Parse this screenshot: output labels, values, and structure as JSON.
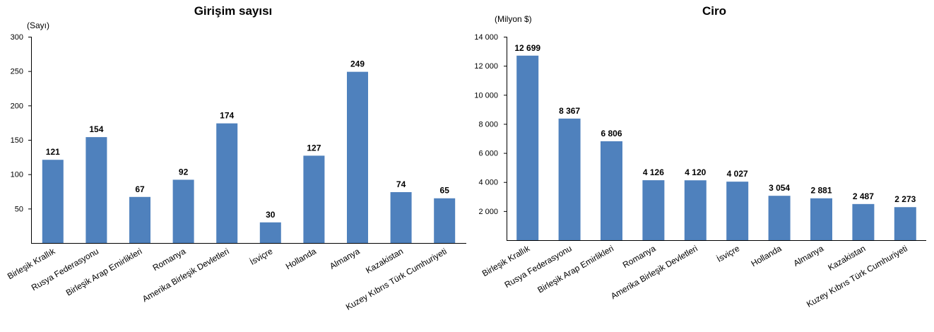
{
  "chart_data": [
    {
      "type": "bar",
      "title": "Girişim sayısı",
      "ylabel": "(Sayı)",
      "xlabel": "",
      "ylim": [
        0,
        300
      ],
      "yticks": [
        50,
        100,
        150,
        200,
        250,
        300
      ],
      "ytick_labels": [
        "50",
        "100",
        "150",
        "200",
        "250",
        "300"
      ],
      "grid": false,
      "color": "#4f81bd",
      "categories": [
        "Birleşik Krallık",
        "Rusya Federasyonu",
        "Birleşik Arap Emirlikleri",
        "Romanya",
        "Amerika Birleşik Devletleri",
        "İsviçre",
        "Hollanda",
        "Almanya",
        "Kazakistan",
        "Kuzey Kıbrıs Türk Cumhuriyeti"
      ],
      "values": [
        121,
        154,
        67,
        92,
        174,
        30,
        127,
        249,
        74,
        65
      ],
      "value_labels": [
        "121",
        "154",
        "67",
        "92",
        "174",
        "30",
        "127",
        "249",
        "74",
        "65"
      ]
    },
    {
      "type": "bar",
      "title": "Ciro",
      "ylabel": "(Milyon $)",
      "xlabel": "",
      "ylim": [
        0,
        14000
      ],
      "yticks": [
        2000,
        4000,
        6000,
        8000,
        10000,
        12000,
        14000
      ],
      "ytick_labels": [
        "2 000",
        "4 000",
        "6 000",
        "8 000",
        "10 000",
        "12 000",
        "14 000"
      ],
      "grid": false,
      "color": "#4f81bd",
      "categories": [
        "Birleşik Krallık",
        "Rusya Federasyonu",
        "Birleşik Arap Emirlikleri",
        "Romanya",
        "Amerika Birleşik Devletleri",
        "İsviçre",
        "Hollanda",
        "Almanya",
        "Kazakistan",
        "Kuzey Kıbrıs Türk Cumhuriyeti"
      ],
      "values": [
        12699,
        8367,
        6806,
        4126,
        4120,
        4027,
        3054,
        2881,
        2487,
        2273
      ],
      "value_labels": [
        "12 699",
        "8 367",
        "6 806",
        "4 126",
        "4 120",
        "4 027",
        "3 054",
        "2 881",
        "2 487",
        "2 273"
      ]
    }
  ]
}
